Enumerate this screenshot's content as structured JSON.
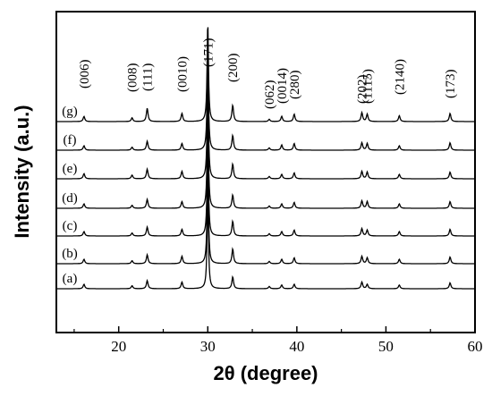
{
  "chart_data": {
    "type": "line",
    "xlabel": "2θ (degree)",
    "ylabel": "Intensity (a.u.)",
    "xlim": [
      13,
      60
    ],
    "x_ticks": [
      "20",
      "30",
      "40",
      "50",
      "60"
    ],
    "grid": false,
    "legend": "none",
    "peaks": [
      {
        "label": "(006)",
        "x": 16.1
      },
      {
        "label": "(008)",
        "x": 21.5
      },
      {
        "label": "(111)",
        "x": 23.2
      },
      {
        "label": "(0010)",
        "x": 27.1
      },
      {
        "label": "(171)",
        "x": 30.0
      },
      {
        "label": "(200)",
        "x": 32.8
      },
      {
        "label": "(062)",
        "x": 36.9
      },
      {
        "label": "(0014)",
        "x": 38.3
      },
      {
        "label": "(280)",
        "x": 39.7
      },
      {
        "label": "(202)",
        "x": 47.3
      },
      {
        "label": "(1115)",
        "x": 47.9
      },
      {
        "label": "(2140)",
        "x": 51.5
      },
      {
        "label": "(173)",
        "x": 57.2
      }
    ],
    "series": [
      {
        "name": "(a)",
        "intensities": [
          0.6,
          0.4,
          1.1,
          0.9,
          13.5,
          1.6,
          0.3,
          0.5,
          0.6,
          0.9,
          0.6,
          0.5,
          0.8
        ]
      },
      {
        "name": "(b)",
        "intensities": [
          0.6,
          0.4,
          1.2,
          1.0,
          13.5,
          2.0,
          0.3,
          0.6,
          0.8,
          1.0,
          0.8,
          0.6,
          0.9
        ]
      },
      {
        "name": "(c)",
        "intensities": [
          0.6,
          0.4,
          1.2,
          0.9,
          13.5,
          2.0,
          0.3,
          0.6,
          0.8,
          1.0,
          0.8,
          0.6,
          0.9
        ]
      },
      {
        "name": "(d)",
        "intensities": [
          0.6,
          0.4,
          1.2,
          0.9,
          13.5,
          1.8,
          0.3,
          0.6,
          0.8,
          1.0,
          0.9,
          0.6,
          0.9
        ]
      },
      {
        "name": "(e)",
        "intensities": [
          0.7,
          0.5,
          1.3,
          1.0,
          13.5,
          2.0,
          0.3,
          0.6,
          0.8,
          1.0,
          0.9,
          0.6,
          0.9
        ]
      },
      {
        "name": "(f)",
        "intensities": [
          0.6,
          0.4,
          1.2,
          0.9,
          13.5,
          2.0,
          0.3,
          0.7,
          0.9,
          1.0,
          0.9,
          0.6,
          1.0
        ]
      },
      {
        "name": "(g)",
        "intensities": [
          0.7,
          0.5,
          1.8,
          1.1,
          13.5,
          2.2,
          0.3,
          0.7,
          1.0,
          1.2,
          1.0,
          0.8,
          1.1
        ]
      }
    ]
  }
}
